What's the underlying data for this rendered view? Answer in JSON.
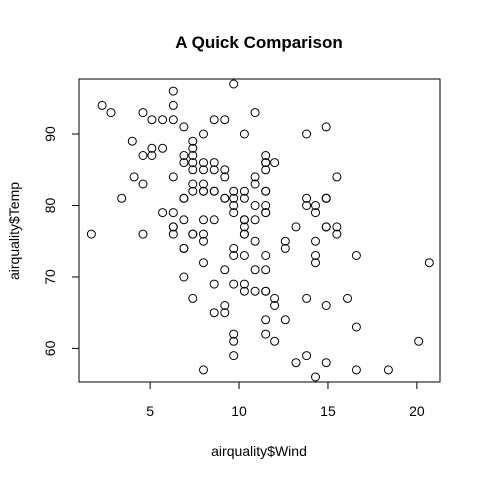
{
  "chart_data": {
    "type": "scatter",
    "title": "A Quick Comparison",
    "xlabel": "airquality$Wind",
    "ylabel": "airquality$Temp",
    "xlim": [
      1.0,
      21.3
    ],
    "ylim": [
      55.3,
      97.7
    ],
    "xticks": [
      5,
      10,
      15,
      20
    ],
    "yticks": [
      60,
      70,
      80,
      90
    ],
    "grid": false,
    "points": [
      [
        7.4,
        67
      ],
      [
        8.0,
        72
      ],
      [
        12.6,
        74
      ],
      [
        11.5,
        62
      ],
      [
        14.3,
        56
      ],
      [
        14.9,
        66
      ],
      [
        8.6,
        65
      ],
      [
        13.8,
        59
      ],
      [
        20.1,
        61
      ],
      [
        8.6,
        69
      ],
      [
        6.9,
        74
      ],
      [
        9.7,
        69
      ],
      [
        9.2,
        66
      ],
      [
        10.9,
        68
      ],
      [
        13.2,
        58
      ],
      [
        11.5,
        64
      ],
      [
        12.0,
        66
      ],
      [
        18.4,
        57
      ],
      [
        11.5,
        68
      ],
      [
        9.7,
        62
      ],
      [
        9.7,
        59
      ],
      [
        16.6,
        73
      ],
      [
        9.7,
        61
      ],
      [
        12.0,
        61
      ],
      [
        16.6,
        57
      ],
      [
        14.9,
        58
      ],
      [
        8.0,
        57
      ],
      [
        12.0,
        67
      ],
      [
        14.9,
        81
      ],
      [
        5.7,
        79
      ],
      [
        7.4,
        76
      ],
      [
        8.6,
        78
      ],
      [
        9.7,
        74
      ],
      [
        16.1,
        67
      ],
      [
        9.2,
        84
      ],
      [
        8.6,
        85
      ],
      [
        14.3,
        79
      ],
      [
        9.7,
        82
      ],
      [
        6.9,
        87
      ],
      [
        13.8,
        90
      ],
      [
        11.5,
        87
      ],
      [
        10.9,
        93
      ],
      [
        9.2,
        92
      ],
      [
        8.0,
        82
      ],
      [
        13.8,
        80
      ],
      [
        11.5,
        79
      ],
      [
        14.9,
        77
      ],
      [
        20.7,
        72
      ],
      [
        9.2,
        65
      ],
      [
        11.5,
        73
      ],
      [
        10.3,
        76
      ],
      [
        6.3,
        77
      ],
      [
        1.7,
        76
      ],
      [
        4.6,
        76
      ],
      [
        6.3,
        76
      ],
      [
        8.0,
        75
      ],
      [
        8.0,
        78
      ],
      [
        10.3,
        73
      ],
      [
        11.5,
        80
      ],
      [
        14.9,
        77
      ],
      [
        8.0,
        83
      ],
      [
        4.1,
        84
      ],
      [
        9.2,
        85
      ],
      [
        9.2,
        81
      ],
      [
        10.9,
        84
      ],
      [
        4.6,
        83
      ],
      [
        10.9,
        83
      ],
      [
        5.1,
        88
      ],
      [
        6.3,
        92
      ],
      [
        5.7,
        92
      ],
      [
        7.4,
        89
      ],
      [
        8.6,
        82
      ],
      [
        14.3,
        73
      ],
      [
        14.9,
        81
      ],
      [
        14.9,
        91
      ],
      [
        14.3,
        80
      ],
      [
        6.9,
        81
      ],
      [
        10.3,
        82
      ],
      [
        6.3,
        84
      ],
      [
        5.1,
        87
      ],
      [
        11.5,
        85
      ],
      [
        6.9,
        74
      ],
      [
        9.7,
        81
      ],
      [
        11.5,
        82
      ],
      [
        8.6,
        86
      ],
      [
        8.0,
        85
      ],
      [
        8.6,
        82
      ],
      [
        12.0,
        86
      ],
      [
        7.4,
        88
      ],
      [
        7.4,
        86
      ],
      [
        7.4,
        83
      ],
      [
        9.2,
        81
      ],
      [
        6.9,
        81
      ],
      [
        13.8,
        81
      ],
      [
        7.4,
        82
      ],
      [
        6.9,
        86
      ],
      [
        7.4,
        85
      ],
      [
        4.6,
        87
      ],
      [
        4.0,
        89
      ],
      [
        10.3,
        90
      ],
      [
        8.0,
        90
      ],
      [
        8.6,
        92
      ],
      [
        11.5,
        86
      ],
      [
        11.5,
        86
      ],
      [
        11.5,
        82
      ],
      [
        9.7,
        80
      ],
      [
        11.5,
        79
      ],
      [
        10.3,
        77
      ],
      [
        6.3,
        79
      ],
      [
        7.4,
        76
      ],
      [
        10.9,
        78
      ],
      [
        10.3,
        78
      ],
      [
        15.5,
        77
      ],
      [
        14.3,
        72
      ],
      [
        12.6,
        75
      ],
      [
        9.7,
        79
      ],
      [
        3.4,
        81
      ],
      [
        8.0,
        86
      ],
      [
        5.7,
        88
      ],
      [
        9.7,
        97
      ],
      [
        2.3,
        94
      ],
      [
        6.3,
        96
      ],
      [
        6.3,
        94
      ],
      [
        6.9,
        91
      ],
      [
        5.1,
        92
      ],
      [
        2.8,
        93
      ],
      [
        4.6,
        93
      ],
      [
        7.4,
        87
      ],
      [
        15.5,
        84
      ],
      [
        10.9,
        80
      ],
      [
        10.3,
        78
      ],
      [
        10.9,
        75
      ],
      [
        9.7,
        73
      ],
      [
        14.9,
        81
      ],
      [
        15.5,
        76
      ],
      [
        6.3,
        77
      ],
      [
        10.9,
        71
      ],
      [
        11.5,
        71
      ],
      [
        6.9,
        78
      ],
      [
        13.8,
        67
      ],
      [
        10.3,
        76
      ],
      [
        10.3,
        68
      ],
      [
        8.0,
        82
      ],
      [
        12.6,
        64
      ],
      [
        9.2,
        71
      ],
      [
        10.3,
        81
      ],
      [
        10.3,
        69
      ],
      [
        16.6,
        63
      ],
      [
        6.9,
        70
      ],
      [
        13.2,
        77
      ],
      [
        14.3,
        75
      ],
      [
        8.0,
        76
      ],
      [
        11.5,
        68
      ]
    ]
  }
}
